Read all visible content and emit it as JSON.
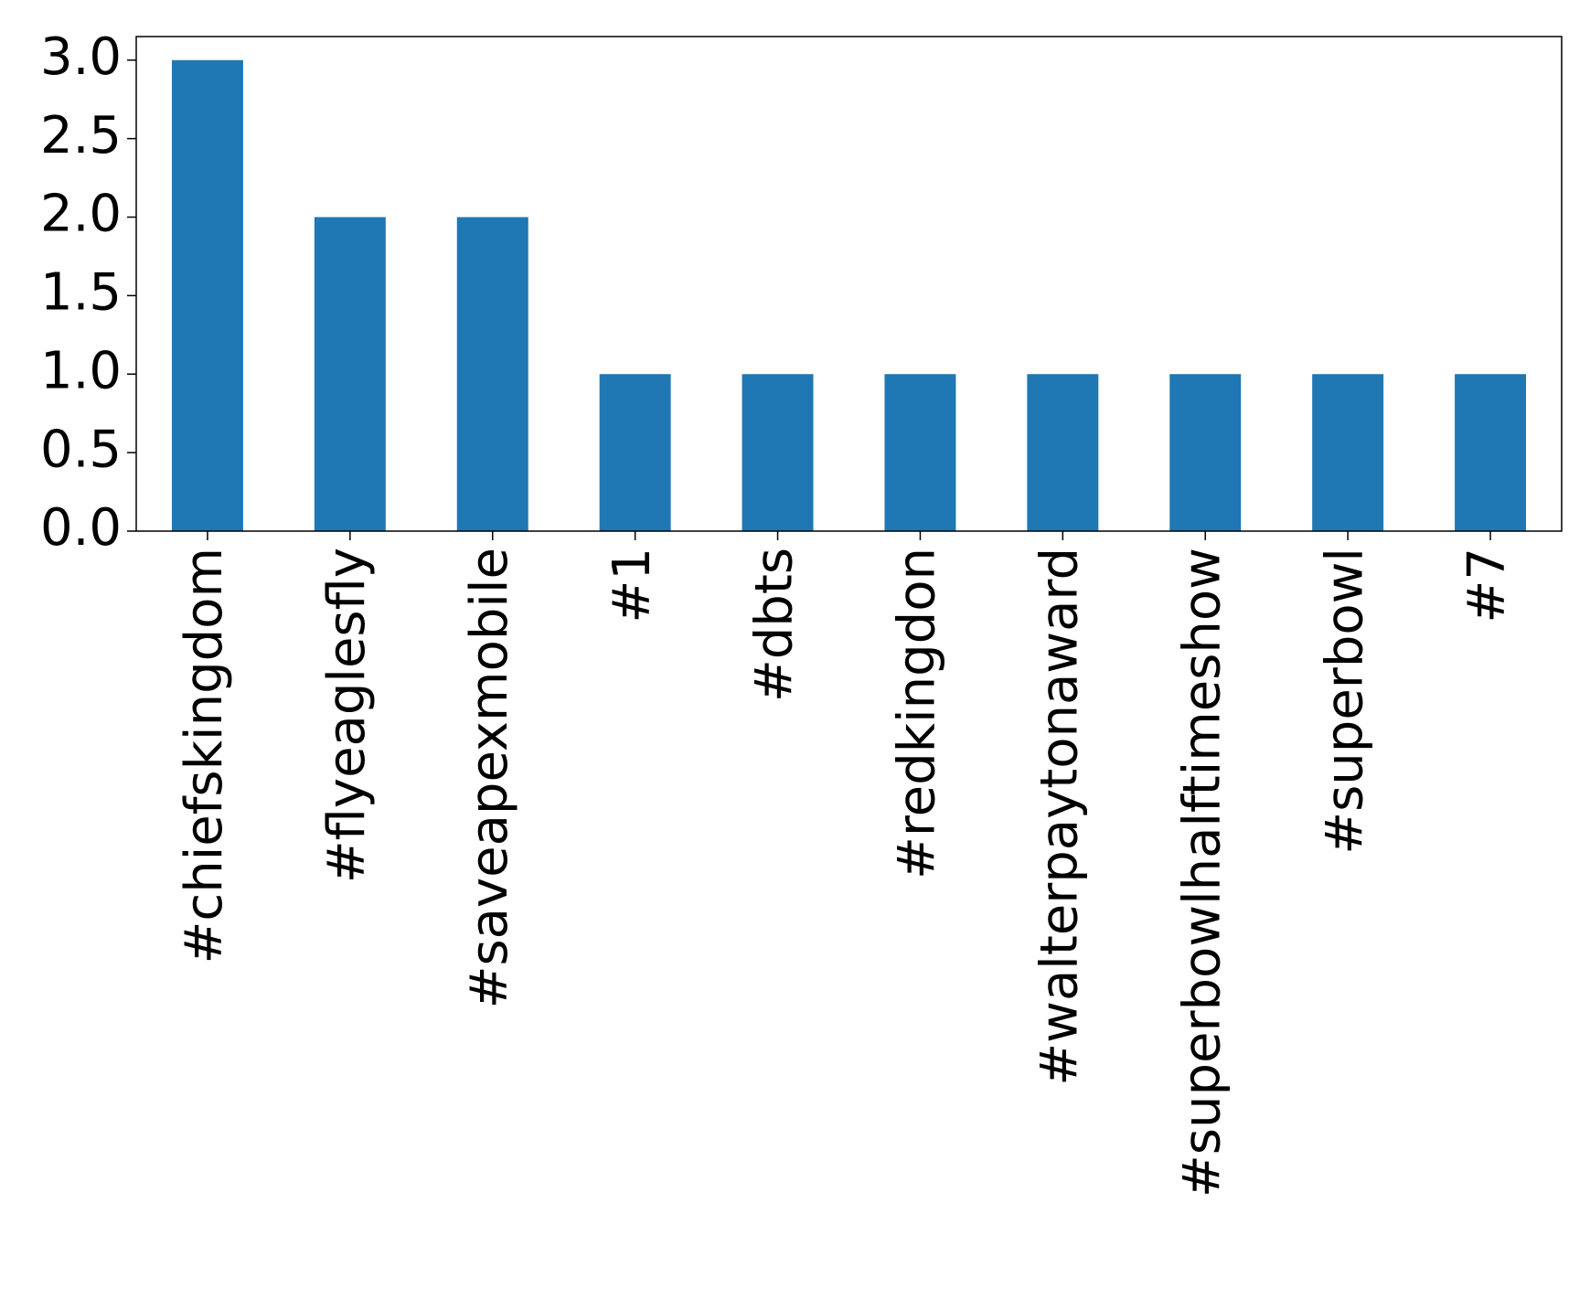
{
  "chart_data": {
    "type": "bar",
    "categories": [
      "#chiefskingdom",
      "#flyeaglesfly",
      "#saveapexmobile",
      "#1",
      "#dbts",
      "#redkingdon",
      "#walterpaytonaward",
      "#superbowlhalftimeshow",
      "#superbowl",
      "#7"
    ],
    "values": [
      3,
      2,
      2,
      1,
      1,
      1,
      1,
      1,
      1,
      1
    ],
    "color": "#1f77b4",
    "ylim": [
      0,
      3.15
    ],
    "yticks": [
      {
        "value": 0,
        "label": "0.0"
      },
      0.5,
      {
        "value": 1,
        "label": "1.0"
      },
      1.5,
      {
        "value": 2,
        "label": "2.0"
      },
      2.5,
      {
        "value": 3,
        "label": "3.0"
      }
    ],
    "grid": false
  }
}
